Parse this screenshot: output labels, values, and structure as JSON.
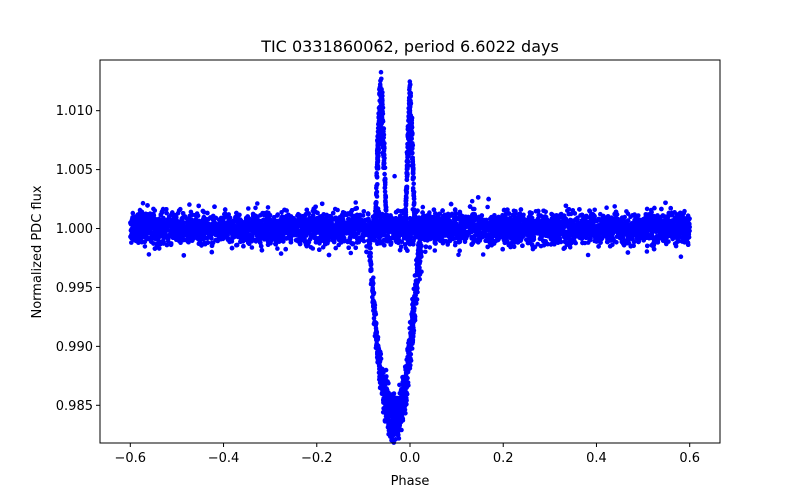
{
  "chart_data": {
    "type": "scatter",
    "title": "TIC 0331860062, period 6.6022 days",
    "xlabel": "Phase",
    "ylabel": "Normalized PDC flux",
    "xlim": [
      -0.665,
      0.665
    ],
    "ylim": [
      0.9818,
      1.0143
    ],
    "xticks": [
      {
        "value": -0.6,
        "label": "−0.6"
      },
      {
        "value": -0.4,
        "label": "−0.4"
      },
      {
        "value": -0.2,
        "label": "−0.2"
      },
      {
        "value": 0.0,
        "label": "0.0"
      },
      {
        "value": 0.2,
        "label": "0.2"
      },
      {
        "value": 0.4,
        "label": "0.4"
      },
      {
        "value": 0.6,
        "label": "0.6"
      }
    ],
    "yticks": [
      {
        "value": 0.985,
        "label": "0.985"
      },
      {
        "value": 0.99,
        "label": "0.990"
      },
      {
        "value": 0.995,
        "label": "0.995"
      },
      {
        "value": 1.0,
        "label": "1.000"
      },
      {
        "value": 1.005,
        "label": "1.005"
      },
      {
        "value": 1.01,
        "label": "1.010"
      }
    ],
    "grid": false,
    "legend": "none",
    "marker_color": "#0000ff",
    "series": [
      {
        "baseline": {
          "x_range": [
            -0.6,
            0.6
          ],
          "y_center": 1.0,
          "y_spread": 0.0012
        },
        "features": [
          {
            "kind": "spike",
            "x_center": -0.0625,
            "width": 0.012,
            "peak_y": 1.0131
          },
          {
            "kind": "spike",
            "x_center": 0.0,
            "width": 0.01,
            "peak_y": 1.0122
          },
          {
            "kind": "dip",
            "x_center": -0.034,
            "width": 0.055,
            "min_y": 0.9822
          }
        ]
      }
    ]
  }
}
